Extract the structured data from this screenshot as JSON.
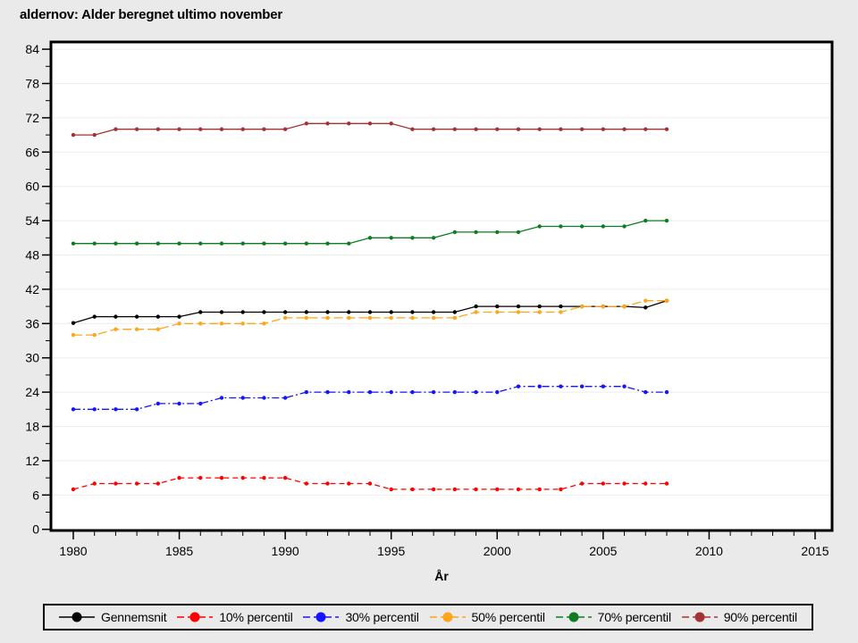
{
  "page": {
    "background_color": "#eaeaea",
    "plot_background_color": "#ffffff"
  },
  "chart_data": {
    "type": "line",
    "title": "aldernov: Alder beregnet ultimo november",
    "xlabel": "År",
    "ylabel": "",
    "grid": "horizontal",
    "gridline_color": "#ececec",
    "legend_position": "bottom",
    "xlim": [
      1979,
      2016
    ],
    "ylim": [
      0,
      84
    ],
    "x_major_ticks": [
      1980,
      1985,
      1990,
      1995,
      2000,
      2005,
      2010,
      2015
    ],
    "x_minor_step": 1,
    "y_major_ticks": [
      0,
      6,
      12,
      18,
      24,
      30,
      36,
      42,
      48,
      54,
      60,
      66,
      72,
      78,
      84
    ],
    "y_minor_step": 3,
    "x": [
      1980,
      1981,
      1982,
      1983,
      1984,
      1985,
      1986,
      1987,
      1988,
      1989,
      1990,
      1991,
      1992,
      1993,
      1994,
      1995,
      1996,
      1997,
      1998,
      1999,
      2000,
      2001,
      2002,
      2003,
      2004,
      2005,
      2006,
      2007,
      2008
    ],
    "series": [
      {
        "name": "Gennemsnit",
        "color": "#000000",
        "dash": "solid",
        "legend_dash": false,
        "marker": "circle",
        "values": [
          36.1,
          37.2,
          37.2,
          37.2,
          37.2,
          37.2,
          38,
          38,
          38,
          38,
          38,
          38,
          38,
          38,
          38,
          38,
          38,
          38,
          38,
          39,
          39,
          39,
          39,
          39,
          39,
          39,
          39,
          38.8,
          40
        ]
      },
      {
        "name": "10% percentil",
        "color": "#ff0000",
        "dash": "dashed",
        "legend_dash": true,
        "marker": "circle",
        "values": [
          7,
          8,
          8,
          8,
          8,
          9,
          9,
          9,
          9,
          9,
          9,
          8,
          8,
          8,
          8,
          7,
          7,
          7,
          7,
          7,
          7,
          7,
          7,
          7,
          8,
          8,
          8,
          8,
          8
        ]
      },
      {
        "name": "30% percentil",
        "color": "#1414ff",
        "dash": "dash-dot",
        "legend_dash": true,
        "marker": "circle",
        "values": [
          21,
          21,
          21,
          21,
          22,
          22,
          22,
          23,
          23,
          23,
          23,
          24,
          24,
          24,
          24,
          24,
          24,
          24,
          24,
          24,
          24,
          25,
          25,
          25,
          25,
          25,
          25,
          24,
          24
        ]
      },
      {
        "name": "50% percentil",
        "color": "#ffa519",
        "dash": "long-dash",
        "legend_dash": true,
        "marker": "circle",
        "values": [
          34,
          34,
          35,
          35,
          35,
          36,
          36,
          36,
          36,
          36,
          37,
          37,
          37,
          37,
          37,
          37,
          37,
          37,
          37,
          38,
          38,
          38,
          38,
          38,
          39,
          39,
          39,
          40,
          40
        ]
      },
      {
        "name": "70% percentil",
        "color": "#0e7d20",
        "dash": "solid",
        "legend_dash": true,
        "marker": "circle",
        "values": [
          50,
          50,
          50,
          50,
          50,
          50,
          50,
          50,
          50,
          50,
          50,
          50,
          50,
          50,
          51,
          51,
          51,
          51,
          52,
          52,
          52,
          52,
          53,
          53,
          53,
          53,
          53,
          54,
          54
        ]
      },
      {
        "name": "90% percentil",
        "color": "#a53232",
        "dash": "solid",
        "legend_dash": true,
        "marker": "circle",
        "values": [
          69,
          69,
          70,
          70,
          70,
          70,
          70,
          70,
          70,
          70,
          70,
          71,
          71,
          71,
          71,
          71,
          70,
          70,
          70,
          70,
          70,
          70,
          70,
          70,
          70,
          70,
          70,
          70,
          70
        ]
      }
    ]
  }
}
